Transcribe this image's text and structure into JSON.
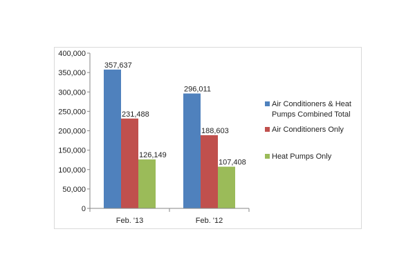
{
  "chart_data": {
    "type": "bar",
    "title": "",
    "xlabel": "",
    "ylabel": "",
    "categories": [
      "Feb. '13",
      "Feb. '12"
    ],
    "ylim": [
      0,
      400000
    ],
    "yticks": [
      0,
      50000,
      100000,
      150000,
      200000,
      250000,
      300000,
      350000,
      400000
    ],
    "ytick_labels": [
      "0",
      "50,000",
      "100,000",
      "150,000",
      "200,000",
      "250,000",
      "300,000",
      "350,000",
      "400,000"
    ],
    "grid": false,
    "legend_position": "right",
    "series": [
      {
        "name": "Air Conditioners & Heat Pumps Combined Total",
        "color": "#4f81bd",
        "values": [
          357637,
          296011
        ],
        "labels": [
          "357,637",
          "296,011"
        ]
      },
      {
        "name": "Air Conditioners Only",
        "color": "#c0504d",
        "values": [
          231488,
          188603
        ],
        "labels": [
          "231,488",
          "188,603"
        ]
      },
      {
        "name": "Heat Pumps Only",
        "color": "#9bbb59",
        "values": [
          126149,
          107408
        ],
        "labels": [
          "126,149",
          "107,408"
        ]
      }
    ],
    "legend_lines": [
      [
        "Air Conditioners & Heat",
        "Pumps Combined Total"
      ],
      [
        "Air Conditioners Only"
      ],
      [
        "Heat Pumps Only"
      ]
    ]
  }
}
